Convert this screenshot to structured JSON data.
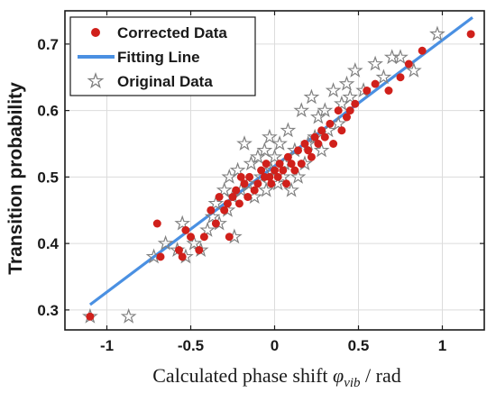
{
  "chart_data": {
    "type": "scatter",
    "xlabel_main": "Calculated phase shift ",
    "xlabel_symbol": "φ",
    "xlabel_subscript": "vib",
    "xlabel_unit": " / rad",
    "ylabel": "Transition probability",
    "xlim": [
      -1.25,
      1.25
    ],
    "ylim": [
      0.27,
      0.75
    ],
    "xticks": [
      -1,
      -0.5,
      0,
      0.5,
      1
    ],
    "xtick_labels": [
      "-1",
      "-0.5",
      "0",
      "0.5",
      "1"
    ],
    "yticks": [
      0.3,
      0.4,
      0.5,
      0.6,
      0.7
    ],
    "ytick_labels": [
      "0.3",
      "0.4",
      "0.5",
      "0.6",
      "0.7"
    ],
    "grid": true,
    "legend_position": "top-left",
    "legend": {
      "corrected": "Corrected Data",
      "fit": "Fitting Line",
      "original": "Original Data"
    },
    "colors": {
      "corrected": "#d0201b",
      "fit": "#4a90e2",
      "original": "#808080",
      "grid": "#dcdcdc",
      "axis": "#1a1a1a"
    },
    "fit_line": {
      "x": [
        -1.1,
        1.18
      ],
      "y": [
        0.308,
        0.74
      ]
    },
    "series": [
      {
        "name": "Corrected Data",
        "marker": "circle",
        "points": [
          [
            -1.1,
            0.29
          ],
          [
            -0.7,
            0.43
          ],
          [
            -0.68,
            0.38
          ],
          [
            -0.57,
            0.39
          ],
          [
            -0.55,
            0.38
          ],
          [
            -0.53,
            0.42
          ],
          [
            -0.5,
            0.41
          ],
          [
            -0.45,
            0.39
          ],
          [
            -0.42,
            0.41
          ],
          [
            -0.38,
            0.45
          ],
          [
            -0.35,
            0.43
          ],
          [
            -0.33,
            0.47
          ],
          [
            -0.3,
            0.45
          ],
          [
            -0.28,
            0.46
          ],
          [
            -0.27,
            0.41
          ],
          [
            -0.25,
            0.47
          ],
          [
            -0.23,
            0.48
          ],
          [
            -0.21,
            0.46
          ],
          [
            -0.2,
            0.5
          ],
          [
            -0.18,
            0.49
          ],
          [
            -0.16,
            0.47
          ],
          [
            -0.15,
            0.5
          ],
          [
            -0.12,
            0.48
          ],
          [
            -0.1,
            0.49
          ],
          [
            -0.08,
            0.51
          ],
          [
            -0.06,
            0.5
          ],
          [
            -0.05,
            0.52
          ],
          [
            -0.03,
            0.5
          ],
          [
            -0.02,
            0.49
          ],
          [
            0.0,
            0.51
          ],
          [
            0.02,
            0.5
          ],
          [
            0.03,
            0.52
          ],
          [
            0.05,
            0.51
          ],
          [
            0.07,
            0.49
          ],
          [
            0.08,
            0.53
          ],
          [
            0.1,
            0.52
          ],
          [
            0.12,
            0.51
          ],
          [
            0.14,
            0.54
          ],
          [
            0.16,
            0.52
          ],
          [
            0.18,
            0.55
          ],
          [
            0.2,
            0.54
          ],
          [
            0.22,
            0.53
          ],
          [
            0.24,
            0.56
          ],
          [
            0.26,
            0.55
          ],
          [
            0.28,
            0.57
          ],
          [
            0.3,
            0.56
          ],
          [
            0.33,
            0.58
          ],
          [
            0.35,
            0.55
          ],
          [
            0.38,
            0.6
          ],
          [
            0.4,
            0.57
          ],
          [
            0.43,
            0.59
          ],
          [
            0.45,
            0.6
          ],
          [
            0.48,
            0.61
          ],
          [
            0.55,
            0.63
          ],
          [
            0.6,
            0.64
          ],
          [
            0.68,
            0.63
          ],
          [
            0.75,
            0.65
          ],
          [
            0.8,
            0.67
          ],
          [
            0.88,
            0.69
          ],
          [
            1.17,
            0.715
          ]
        ]
      },
      {
        "name": "Original Data",
        "marker": "star",
        "points": [
          [
            -1.1,
            0.29
          ],
          [
            -0.87,
            0.29
          ],
          [
            -0.72,
            0.38
          ],
          [
            -0.65,
            0.4
          ],
          [
            -0.58,
            0.39
          ],
          [
            -0.55,
            0.43
          ],
          [
            -0.53,
            0.38
          ],
          [
            -0.48,
            0.4
          ],
          [
            -0.44,
            0.39
          ],
          [
            -0.4,
            0.42
          ],
          [
            -0.37,
            0.44
          ],
          [
            -0.35,
            0.46
          ],
          [
            -0.33,
            0.43
          ],
          [
            -0.3,
            0.48
          ],
          [
            -0.28,
            0.45
          ],
          [
            -0.27,
            0.5
          ],
          [
            -0.25,
            0.47
          ],
          [
            -0.24,
            0.41
          ],
          [
            -0.22,
            0.51
          ],
          [
            -0.2,
            0.48
          ],
          [
            -0.18,
            0.55
          ],
          [
            -0.16,
            0.49
          ],
          [
            -0.14,
            0.52
          ],
          [
            -0.12,
            0.47
          ],
          [
            -0.1,
            0.53
          ],
          [
            -0.08,
            0.5
          ],
          [
            -0.06,
            0.54
          ],
          [
            -0.05,
            0.48
          ],
          [
            -0.03,
            0.56
          ],
          [
            -0.02,
            0.51
          ],
          [
            0.0,
            0.53
          ],
          [
            0.02,
            0.49
          ],
          [
            0.03,
            0.55
          ],
          [
            0.05,
            0.5
          ],
          [
            0.06,
            0.52
          ],
          [
            0.08,
            0.57
          ],
          [
            0.1,
            0.48
          ],
          [
            0.12,
            0.54
          ],
          [
            0.14,
            0.5
          ],
          [
            0.16,
            0.6
          ],
          [
            0.18,
            0.52
          ],
          [
            0.2,
            0.55
          ],
          [
            0.22,
            0.62
          ],
          [
            0.24,
            0.56
          ],
          [
            0.26,
            0.59
          ],
          [
            0.28,
            0.54
          ],
          [
            0.3,
            0.6
          ],
          [
            0.32,
            0.57
          ],
          [
            0.35,
            0.63
          ],
          [
            0.38,
            0.58
          ],
          [
            0.4,
            0.61
          ],
          [
            0.43,
            0.64
          ],
          [
            0.45,
            0.62
          ],
          [
            0.48,
            0.66
          ],
          [
            0.53,
            0.63
          ],
          [
            0.6,
            0.67
          ],
          [
            0.65,
            0.65
          ],
          [
            0.7,
            0.68
          ],
          [
            0.75,
            0.68
          ],
          [
            0.83,
            0.66
          ],
          [
            0.97,
            0.715
          ]
        ]
      }
    ]
  }
}
